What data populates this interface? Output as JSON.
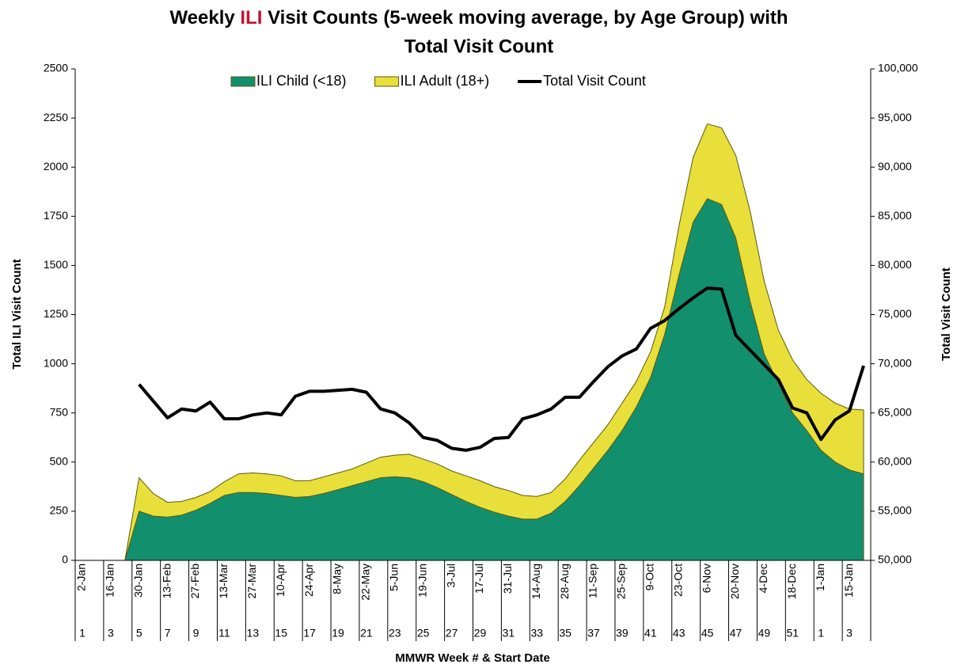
{
  "chart_data": {
    "type": "stacked_area_line",
    "title": [
      "Weekly ",
      "ILI",
      " Visit Counts (5-week moving average, by Age Group) with",
      "Total Visit Count"
    ],
    "title_highlight_color": "#c8102e",
    "ylabel": "Total ILI Visit Count",
    "y2label": "Total Visit Count",
    "xlabel": "MMWR Week # & Start Date",
    "legend": "top",
    "categories": [
      "2-Jan",
      null,
      "16-Jan",
      null,
      "30-Jan",
      null,
      "13-Feb",
      null,
      "27-Feb",
      null,
      "13-Mar",
      null,
      "27-Mar",
      null,
      "10-Apr",
      null,
      "24-Apr",
      null,
      "8-May",
      null,
      "22-May",
      null,
      "5-Jun",
      null,
      "19-Jun",
      null,
      "3-Jul",
      null,
      "17-Jul",
      null,
      "31-Jul",
      null,
      "14-Aug",
      null,
      "28-Aug",
      null,
      "11-Sep",
      null,
      "25-Sep",
      null,
      "9-Oct",
      null,
      "23-Oct",
      null,
      "6-Nov",
      null,
      "20-Nov",
      null,
      "4-Dec",
      null,
      "18-Dec",
      null,
      "1-Jan",
      null,
      "15-Jan",
      null
    ],
    "weeks": [
      1,
      null,
      3,
      null,
      5,
      null,
      7,
      null,
      9,
      null,
      11,
      null,
      13,
      null,
      15,
      null,
      17,
      null,
      19,
      null,
      21,
      null,
      23,
      null,
      25,
      null,
      27,
      null,
      29,
      null,
      31,
      null,
      33,
      null,
      35,
      null,
      37,
      null,
      39,
      null,
      41,
      null,
      43,
      null,
      45,
      null,
      47,
      null,
      49,
      null,
      51,
      null,
      1,
      null,
      3,
      null
    ],
    "series": [
      {
        "name": "ILI Child (<18)",
        "color": "#12906e",
        "stack": true,
        "values": [
          0,
          0,
          0,
          0,
          250,
          225,
          220,
          230,
          255,
          290,
          330,
          345,
          345,
          340,
          330,
          320,
          325,
          340,
          360,
          380,
          400,
          420,
          425,
          420,
          400,
          370,
          335,
          300,
          270,
          245,
          225,
          210,
          210,
          240,
          300,
          380,
          470,
          560,
          660,
          780,
          930,
          1150,
          1450,
          1720,
          1840,
          1810,
          1640,
          1320,
          1050,
          900,
          750,
          660,
          560,
          500,
          460,
          440
        ]
      },
      {
        "name": "ILI Adult (18+)",
        "color": "#e8df3a",
        "stack": true,
        "values": [
          0,
          0,
          0,
          0,
          170,
          115,
          75,
          70,
          65,
          60,
          70,
          95,
          100,
          100,
          100,
          85,
          80,
          85,
          85,
          85,
          95,
          105,
          110,
          120,
          115,
          120,
          120,
          130,
          135,
          130,
          130,
          120,
          115,
          105,
          115,
          130,
          130,
          130,
          140,
          130,
          130,
          140,
          250,
          330,
          380,
          390,
          420,
          460,
          370,
          270,
          270,
          260,
          290,
          300,
          310,
          325
        ]
      },
      {
        "name": "Total Visit Count",
        "color": "#000000",
        "axis": "y2",
        "values": [
          null,
          null,
          null,
          null,
          67900,
          66200,
          64500,
          65400,
          65200,
          66100,
          64400,
          64400,
          64800,
          65000,
          64800,
          66700,
          67200,
          67200,
          67300,
          67400,
          67100,
          65400,
          65000,
          64000,
          62500,
          62200,
          61400,
          61200,
          61500,
          62400,
          62500,
          64400,
          64800,
          65400,
          66600,
          66600,
          68200,
          69700,
          70800,
          71500,
          73600,
          74400,
          75600,
          76700,
          77700,
          77600,
          72900,
          71400,
          69900,
          68400,
          65500,
          65000,
          62300,
          64300,
          65200,
          69800
        ]
      }
    ],
    "ylim": [
      0,
      2500
    ],
    "yticks": [
      0,
      250,
      500,
      750,
      1000,
      1250,
      1500,
      1750,
      2000,
      2250,
      2500
    ],
    "y2lim": [
      50000,
      100000
    ],
    "y2ticks": [
      {
        "value": 50000,
        "label": "50,000"
      },
      {
        "value": 55000,
        "label": "55,000"
      },
      {
        "value": 60000,
        "label": "60,000"
      },
      {
        "value": 65000,
        "label": "65,000"
      },
      {
        "value": 70000,
        "label": "70,000"
      },
      {
        "value": 75000,
        "label": "75,000"
      },
      {
        "value": 80000,
        "label": "80,000"
      },
      {
        "value": 85000,
        "label": "85,000"
      },
      {
        "value": 90000,
        "label": "90,000"
      },
      {
        "value": 95000,
        "label": "95,000"
      },
      {
        "value": 100000,
        "label": "100,000"
      }
    ]
  }
}
